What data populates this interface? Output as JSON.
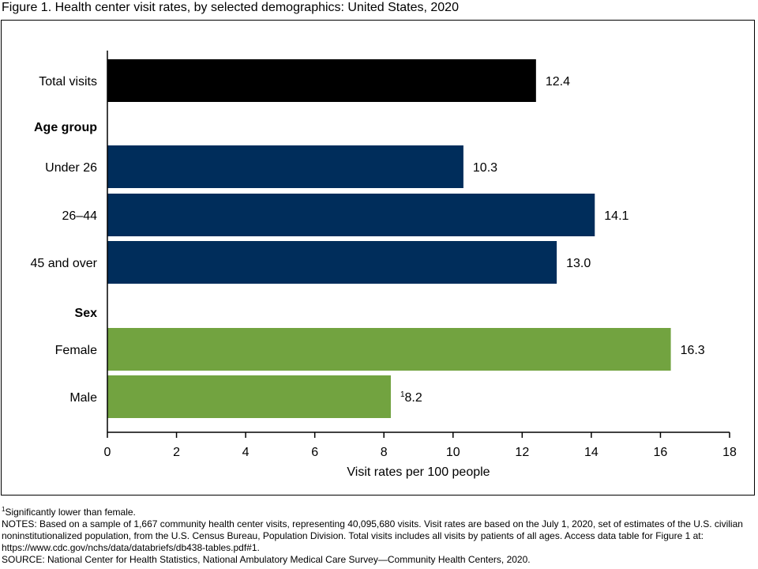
{
  "figure_title": "Figure 1. Health center visit rates, by selected demographics: United States, 2020",
  "chart_data": {
    "type": "bar",
    "orientation": "horizontal",
    "xlabel": "Visit rates per 100 people",
    "xlim": [
      0,
      18
    ],
    "xticks": [
      0,
      2,
      4,
      6,
      8,
      10,
      12,
      14,
      16,
      18
    ],
    "grid": false,
    "rows": [
      {
        "kind": "bar",
        "label": "Total visits",
        "value": 12.4,
        "display": "12.4",
        "color": "#000000"
      },
      {
        "kind": "group",
        "label": "Age group"
      },
      {
        "kind": "bar",
        "label": "Under 26",
        "value": 10.3,
        "display": "10.3",
        "color": "#002d5b"
      },
      {
        "kind": "bar",
        "label": "26–44",
        "value": 14.1,
        "display": "14.1",
        "color": "#002d5b"
      },
      {
        "kind": "bar",
        "label": "45 and over",
        "value": 13.0,
        "display": "13.0",
        "color": "#002d5b"
      },
      {
        "kind": "group",
        "label": "Sex"
      },
      {
        "kind": "bar",
        "label": "Female",
        "value": 16.3,
        "display": "16.3",
        "color": "#72a340"
      },
      {
        "kind": "bar",
        "label": "Male",
        "value": 8.2,
        "display": "8.2",
        "footnote": "1",
        "color": "#72a340"
      }
    ]
  },
  "footnotes": {
    "marker": "1",
    "significance": "Significantly lower than female.",
    "notes": "NOTES: Based on a sample of 1,667 community health center visits, representing 40,095,680 visits. Visit rates are based on the July 1, 2020, set of estimates of the U.S. civilian noninstitutionalized population, from the U.S. Census Bureau, Population Division. Total visits includes all visits by patients of all ages. Access data table for Figure 1 at: https://www.cdc.gov/nchs/data/databriefs/db438-tables.pdf#1.",
    "source": "SOURCE: National Center for Health Statistics, National Ambulatory Medical Care Survey—Community Health Centers, 2020."
  }
}
